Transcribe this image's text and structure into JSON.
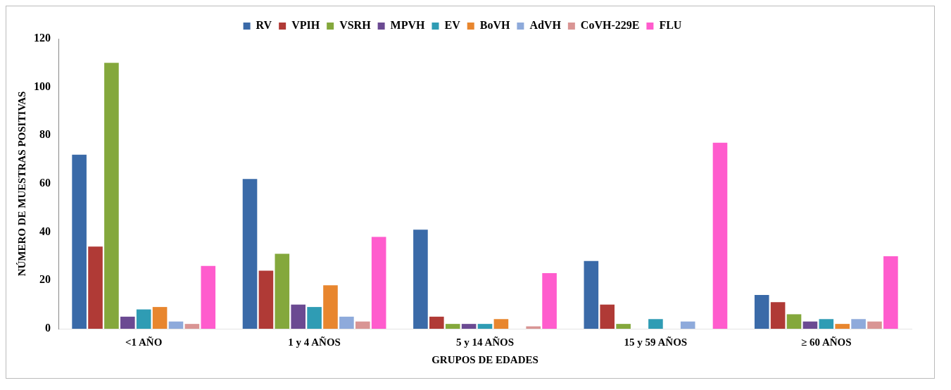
{
  "chart_data": {
    "type": "bar",
    "xlabel": "GRUPOS DE EDADES",
    "ylabel": "NÚMERO DE MUESTRAS POSITIVAS",
    "categories": [
      "<1 AÑO",
      "1 y 4 AÑOS",
      "5 y 14 AÑOS",
      "15 y 59 AÑOS",
      "≥ 60 AÑOS"
    ],
    "ylim": [
      0,
      120
    ],
    "yticks": [
      0,
      20,
      40,
      60,
      80,
      100,
      120
    ],
    "legend": "top",
    "grid": false,
    "series": [
      {
        "name": "RV",
        "color": "#3a6aa8",
        "values": [
          72,
          62,
          41,
          28,
          14
        ]
      },
      {
        "name": "VPIH",
        "color": "#b03a36",
        "values": [
          34,
          24,
          5,
          10,
          11
        ]
      },
      {
        "name": "VSRH",
        "color": "#84a83c",
        "values": [
          110,
          31,
          2,
          2,
          6
        ]
      },
      {
        "name": "MPVH",
        "color": "#6b4a92",
        "values": [
          5,
          10,
          2,
          0,
          3
        ]
      },
      {
        "name": "EV",
        "color": "#2f9cb4",
        "values": [
          8,
          9,
          2,
          4,
          4
        ]
      },
      {
        "name": "BoVH",
        "color": "#e8862e",
        "values": [
          9,
          18,
          4,
          0,
          2
        ]
      },
      {
        "name": "AdVH",
        "color": "#8eaadb",
        "values": [
          3,
          5,
          0,
          3,
          4
        ]
      },
      {
        "name": "CoVH-229E",
        "color": "#d99594",
        "values": [
          2,
          3,
          1,
          0,
          3
        ]
      },
      {
        "name": "FLU",
        "color": "#ff5ccd",
        "values": [
          26,
          38,
          23,
          77,
          30
        ]
      }
    ]
  }
}
